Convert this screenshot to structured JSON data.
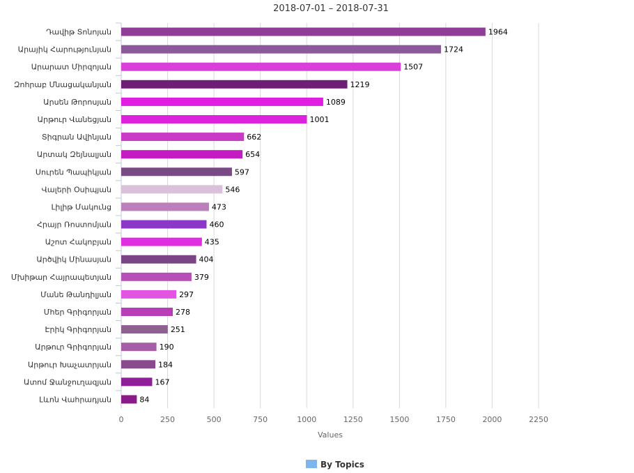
{
  "chart_data": {
    "type": "bar",
    "orientation": "horizontal",
    "title": "2018-07-01 – 2018-07-31",
    "xlabel": "Values",
    "ylabel": "",
    "xlim": [
      0,
      2250
    ],
    "xticks": [
      0,
      250,
      500,
      750,
      1000,
      1250,
      1500,
      1750,
      2000,
      2250
    ],
    "grid": true,
    "legend": {
      "position": "bottom-center",
      "label": "By Topics",
      "color": "#7cb5ec"
    },
    "categories": [
      "Դավիթ Տոնոյան",
      "Արայիկ Հարությունյան",
      "Արարատ Միրզոյան",
      "Զոհրաբ Մնացականյան",
      "Արսեն Թորոսյան",
      "Արթուր Վանեցյան",
      "Տիգրան Ավինյան",
      "Արտակ Զեյնալյան",
      "Սուրեն Պապիկյան",
      "Վալերի Օսիպյան",
      "Լիլիթ Մակունց",
      "Հրայր Ռոստոմյան",
      "Աշոտ Հակոբյան",
      "Արծվիկ Մինասյան",
      "Մխիթար Հայրապետյան",
      "Մանե Թանդիլյան",
      "Մհեր Գրիգորյան",
      "Էրիկ Գրիգորյան",
      "Արթուր Գրիգորյան",
      "Արթուր Խաչատրյան",
      "Ատոմ Ջանջուղազյան",
      "Լևոն Վահրադյան"
    ],
    "values": [
      1964,
      1724,
      1507,
      1219,
      1089,
      1001,
      662,
      654,
      597,
      546,
      473,
      460,
      435,
      404,
      379,
      297,
      278,
      251,
      190,
      184,
      167,
      84
    ],
    "colors": [
      "#8f3d96",
      "#8c5a9a",
      "#d93fd9",
      "#6e1f75",
      "#e01ee0",
      "#dd22dd",
      "#c73bc7",
      "#c21cc2",
      "#7a4a85",
      "#d9c2d9",
      "#bb80bb",
      "#8b38c8",
      "#e12de1",
      "#7b4485",
      "#b64fb6",
      "#e255e2",
      "#b83eb6",
      "#8f6190",
      "#a55ea5",
      "#8a4a8f",
      "#8f1e99",
      "#8b1b8b"
    ]
  }
}
